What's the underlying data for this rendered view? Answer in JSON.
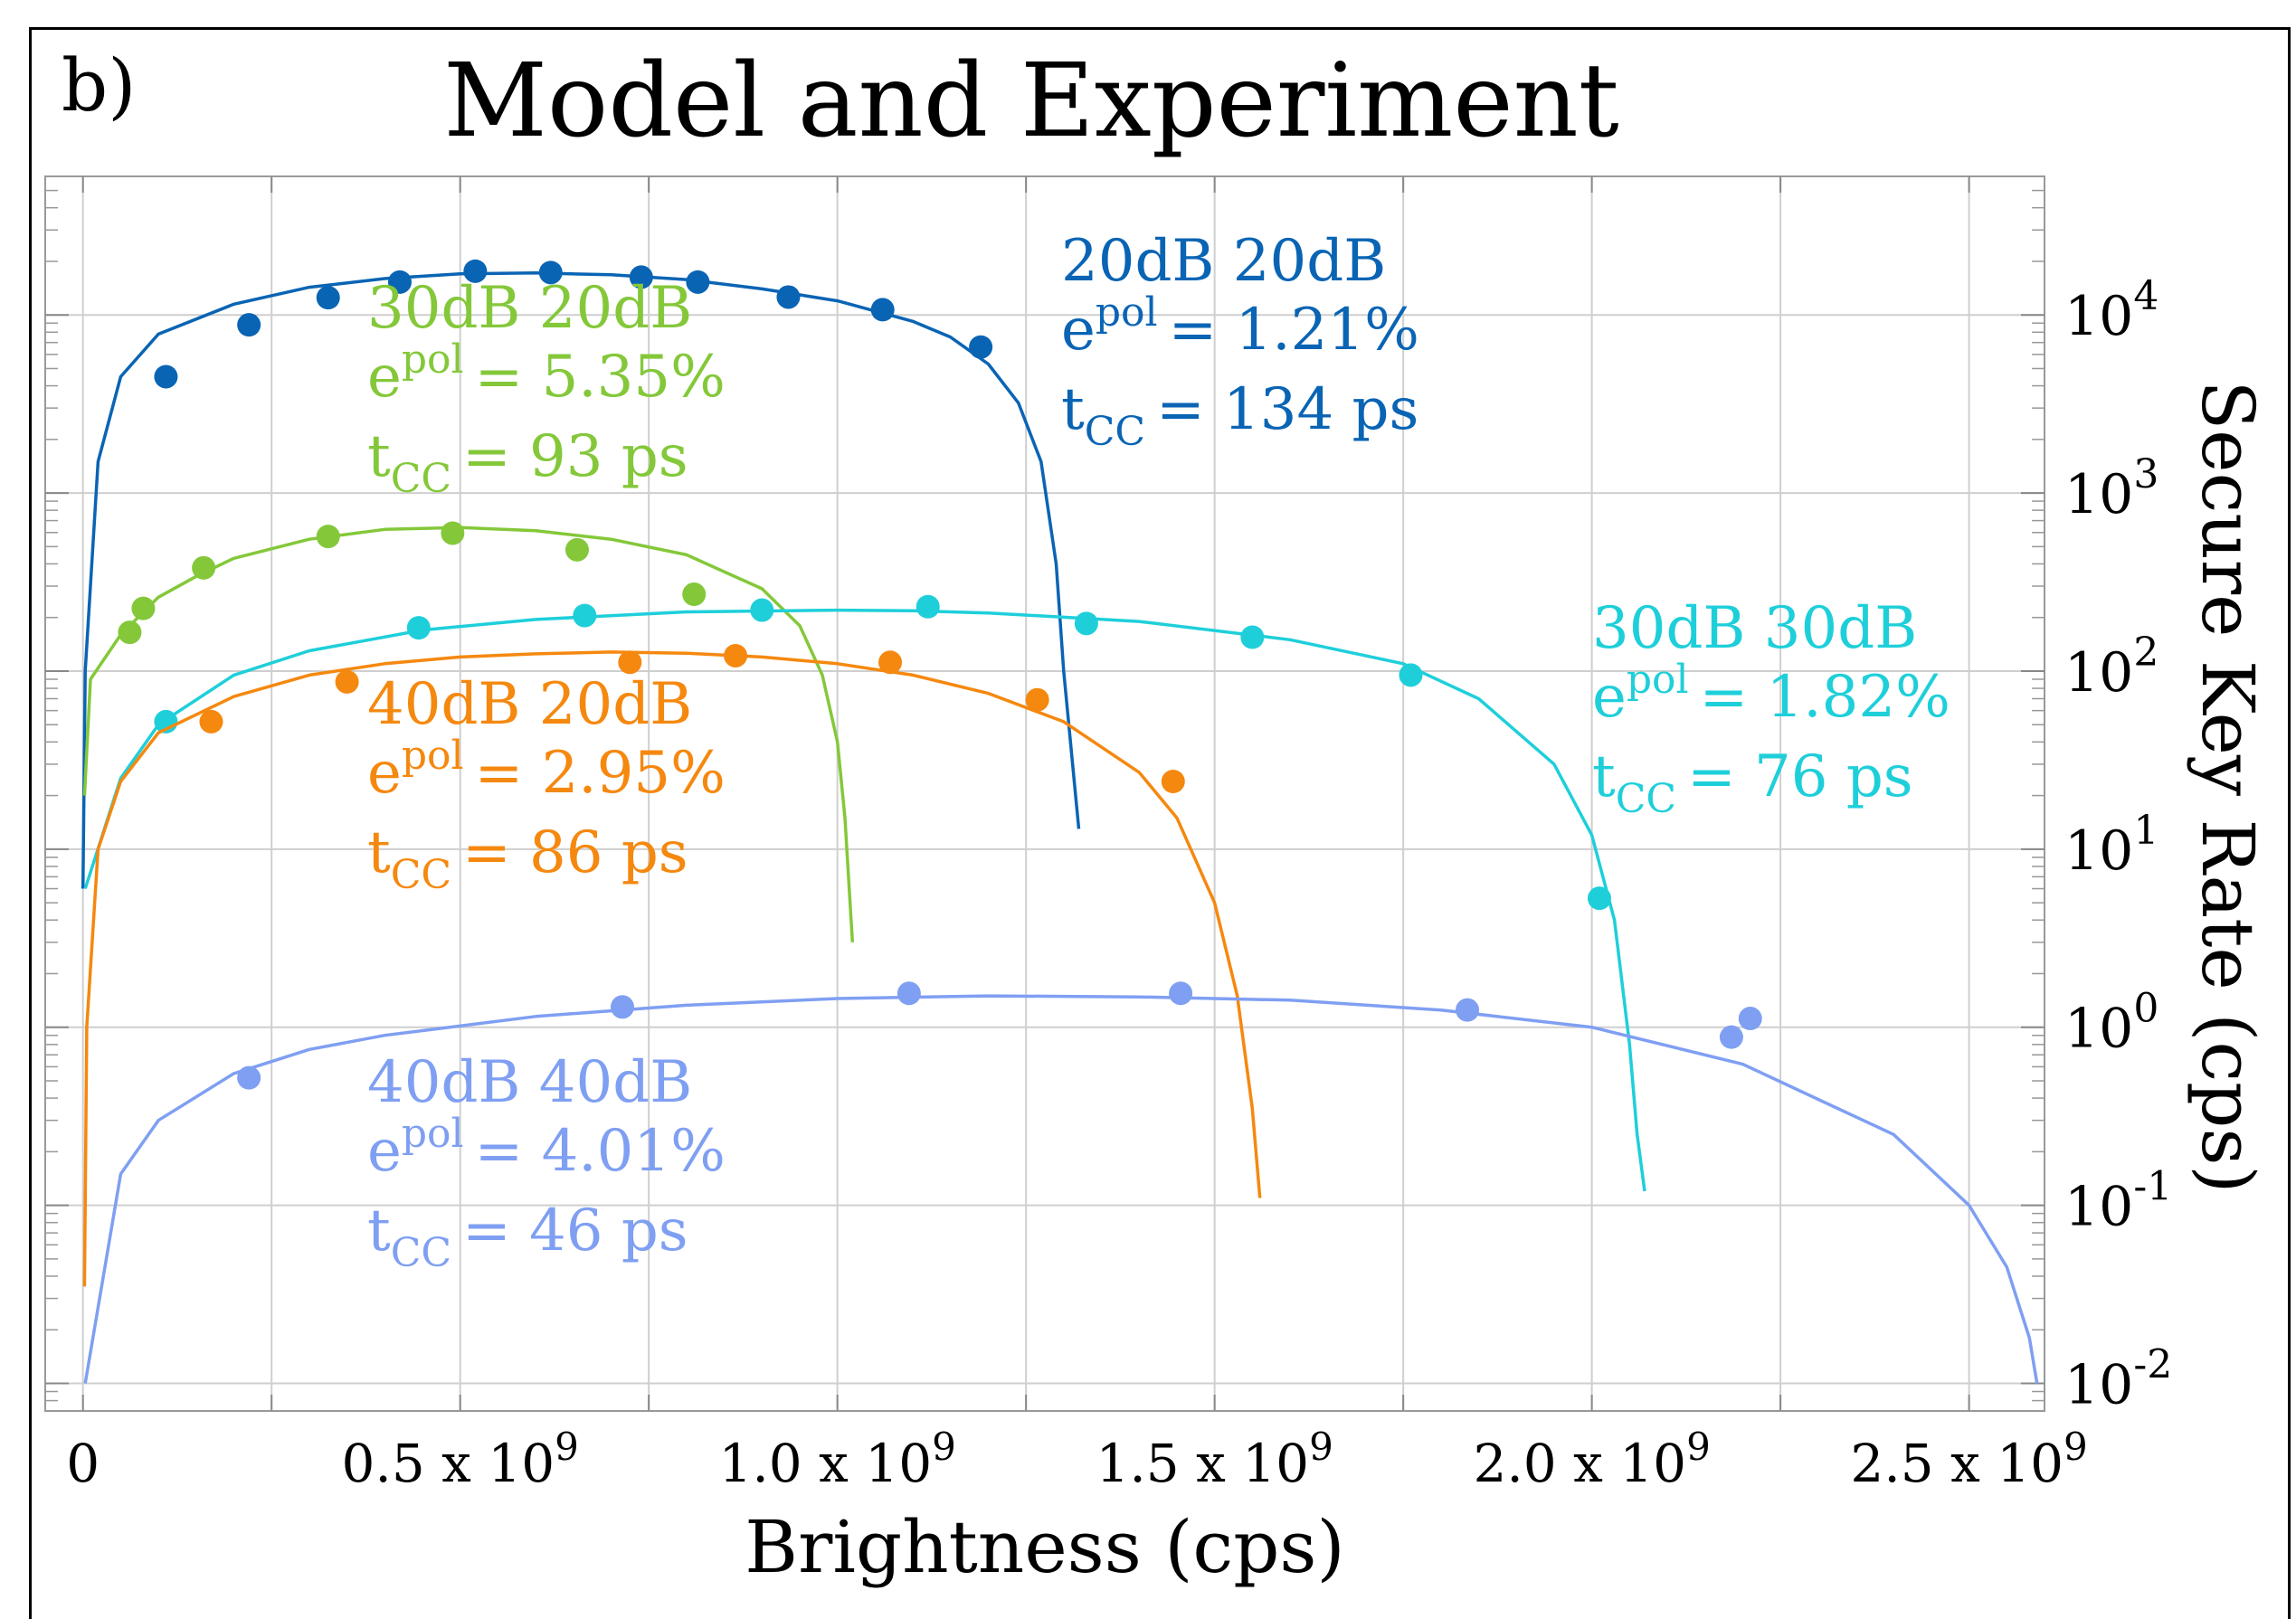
{
  "panel_label": "b)",
  "chart_data": {
    "type": "scatter",
    "title": "Model and Experiment",
    "xlabel": "Brightness (cps)",
    "ylabel": "Secure Key Rate (cps)",
    "xlim": [
      -50000000.0,
      2600000000.0
    ],
    "ylim": [
      0.007,
      60000
    ],
    "y_scale": "log",
    "y_axis_side": "right",
    "grid": true,
    "x_ticks": [
      {
        "value": 0,
        "label": "0"
      },
      {
        "value": 500000000.0,
        "label": "0.5 x 10^9"
      },
      {
        "value": 1000000000.0,
        "label": "1.0 x 10^9"
      },
      {
        "value": 1500000000.0,
        "label": "1.5 x 10^9"
      },
      {
        "value": 2000000000.0,
        "label": "2.0 x 10^9"
      },
      {
        "value": 2500000000.0,
        "label": "2.5 x 10^9"
      }
    ],
    "y_ticks": [
      {
        "value": 0.01,
        "exp": "-2"
      },
      {
        "value": 0.1,
        "exp": "-1"
      },
      {
        "value": 1,
        "exp": "0"
      },
      {
        "value": 10,
        "exp": "1"
      },
      {
        "value": 100,
        "exp": "2"
      },
      {
        "value": 1000,
        "exp": "3"
      },
      {
        "value": 10000,
        "exp": "4"
      }
    ],
    "series": [
      {
        "color": "#0a64b4",
        "annotation": {
          "line1": "20dB 20dB",
          "epol_value": "= 1.21%",
          "tcc_value": "= 134 ps"
        },
        "model": {
          "x": [
            0,
            3000000.0,
            20000000.0,
            50000000.0,
            100000000.0,
            200000000.0,
            300000000.0,
            400000000.0,
            500000000.0,
            600000000.0,
            700000000.0,
            800000000.0,
            900000000.0,
            1000000000.0,
            1100000000.0,
            1150000000.0,
            1200000000.0,
            1240000000.0,
            1270000000.0,
            1290000000.0,
            1300000000.0,
            1320000000.0
          ],
          "y": [
            6,
            100,
            1500,
            4500,
            7800,
            11500,
            14300,
            16000,
            17000,
            17200,
            16800,
            15800,
            14000,
            12000,
            9200,
            7500,
            5300,
            3200,
            1500,
            400,
            100,
            13
          ]
        },
        "measured": {
          "x": [
            110000000.0,
            220000000.0,
            325000000.0,
            420000000.0,
            520000000.0,
            620000000.0,
            740000000.0,
            815000000.0,
            935000000.0,
            1060000000.0,
            1190000000.0
          ],
          "y": [
            4500,
            8800,
            12500,
            15300,
            17600,
            17300,
            16300,
            15300,
            12600,
            10700,
            6600
          ]
        }
      },
      {
        "color": "#84c83a",
        "annotation": {
          "line1": "30dB 20dB",
          "epol_value": "= 5.35%",
          "tcc_value": "= 93 ps"
        },
        "model": {
          "x": [
            2000000.0,
            10000000.0,
            50000000.0,
            100000000.0,
            150000000.0,
            200000000.0,
            300000000.0,
            400000000.0,
            500000000.0,
            600000000.0,
            700000000.0,
            800000000.0,
            900000000.0,
            950000000.0,
            980000000.0,
            1000000000.0,
            1010000000.0,
            1020000000.0
          ],
          "y": [
            20,
            90,
            160,
            260,
            340,
            430,
            550,
            625,
            640,
            615,
            550,
            450,
            290,
            180,
            95,
            40,
            15,
            3
          ]
        },
        "measured": {
          "x": [
            62000000.0,
            80000000.0,
            160000000.0,
            325000000.0,
            490000000.0,
            655000000.0,
            810000000.0
          ],
          "y": [
            165,
            225,
            380,
            570,
            595,
            480,
            270
          ]
        }
      },
      {
        "color": "#1ecfda",
        "annotation": {
          "line1": "30dB 30dB",
          "epol_value": "= 1.82%",
          "tcc_value": "= 76 ps"
        },
        "model": {
          "x": [
            3000000.0,
            50000000.0,
            100000000.0,
            200000000.0,
            300000000.0,
            450000000.0,
            600000000.0,
            800000000.0,
            1000000000.0,
            1100000000.0,
            1200000000.0,
            1400000000.0,
            1600000000.0,
            1750000000.0,
            1850000000.0,
            1950000000.0,
            2000000000.0,
            2030000000.0,
            2050000000.0,
            2060000000.0,
            2070000000.0
          ],
          "y": [
            6,
            25,
            50,
            95,
            130,
            170,
            195,
            215,
            220,
            218,
            212,
            190,
            150,
            110,
            70,
            30,
            12,
            4,
            0.8,
            0.25,
            0.12
          ]
        },
        "measured": {
          "x": [
            110000000.0,
            445000000.0,
            665000000.0,
            900000000.0,
            1120000000.0,
            1330000000.0,
            1550000000.0,
            1760000000.0,
            2010000000.0
          ],
          "y": [
            52,
            175,
            205,
            220,
            230,
            185,
            155,
            95,
            5.3
          ]
        }
      },
      {
        "color": "#f5880f",
        "annotation": {
          "line1": "40dB 20dB",
          "epol_value": "= 2.95%",
          "tcc_value": "= 86 ps"
        },
        "model": {
          "x": [
            2000000.0,
            5000000.0,
            20000000.0,
            50000000.0,
            100000000.0,
            200000000.0,
            300000000.0,
            400000000.0,
            500000000.0,
            600000000.0,
            700000000.0,
            800000000.0,
            900000000.0,
            1000000000.0,
            1100000000.0,
            1200000000.0,
            1300000000.0,
            1400000000.0,
            1450000000.0,
            1500000000.0,
            1530000000.0,
            1550000000.0,
            1560000000.0
          ],
          "y": [
            0.035,
            1,
            10,
            24,
            45,
            72,
            95,
            110,
            120,
            125,
            128,
            126,
            120,
            110,
            95,
            75,
            52,
            27,
            15,
            5,
            1.5,
            0.35,
            0.11
          ]
        },
        "measured": {
          "x": [
            170000000.0,
            350000000.0,
            725000000.0,
            865000000.0,
            1070000000.0,
            1265000000.0,
            1445000000.0
          ],
          "y": [
            52,
            87,
            112,
            122,
            112,
            69,
            24
          ]
        }
      },
      {
        "color": "#7f9ff2",
        "annotation": {
          "line1": "40dB 40dB",
          "epol_value": "= 4.01%",
          "tcc_value": "= 46 ps"
        },
        "model": {
          "x": [
            3000000.0,
            50000000.0,
            100000000.0,
            200000000.0,
            300000000.0,
            400000000.0,
            600000000.0,
            800000000.0,
            1000000000.0,
            1200000000.0,
            1400000000.0,
            1600000000.0,
            1800000000.0,
            2000000000.0,
            2200000000.0,
            2400000000.0,
            2500000000.0,
            2550000000.0,
            2580000000.0,
            2590000000.0
          ],
          "y": [
            0.01,
            0.15,
            0.3,
            0.55,
            0.75,
            0.9,
            1.15,
            1.33,
            1.45,
            1.5,
            1.48,
            1.42,
            1.25,
            1.0,
            0.62,
            0.25,
            0.1,
            0.045,
            0.018,
            0.01
          ]
        },
        "measured": {
          "x": [
            220000000.0,
            715000000.0,
            1095000000.0,
            1455000000.0,
            1835000000.0,
            2185000000.0,
            2210000000.0
          ],
          "y": [
            0.52,
            1.3,
            1.55,
            1.55,
            1.25,
            0.88,
            1.12
          ]
        }
      }
    ]
  }
}
